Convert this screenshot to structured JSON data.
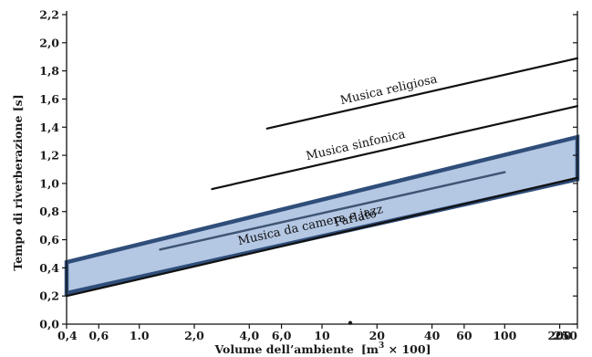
{
  "chart_data": {
    "type": "line",
    "x_scale": "log",
    "xlabel": "Volume dell’ambiente",
    "xlabel_unit_prefix": "[m",
    "xlabel_unit_exp": "3",
    "xlabel_unit_suffix": " × 100]",
    "ylabel": "Tempo di riverberazione [s]",
    "xlim": [
      0.4,
      250
    ],
    "ylim": [
      0.0,
      2.2
    ],
    "x_ticks": [
      0.4,
      0.6,
      1.0,
      2.0,
      4.0,
      6.0,
      10,
      20,
      40,
      60,
      100,
      200,
      250
    ],
    "x_tick_labels": [
      "0,4",
      "0,6",
      "1.0",
      "2,0",
      "4,0",
      "6,0",
      "10",
      "20",
      "40",
      "60",
      "100",
      "200",
      "250"
    ],
    "y_ticks": [
      0.0,
      0.2,
      0.4,
      0.6,
      0.8,
      1.0,
      1.2,
      1.4,
      1.6,
      1.8,
      2.0,
      2.2
    ],
    "y_tick_labels": [
      "0,0",
      "0,2",
      "0,4",
      "0,6",
      "0,8",
      "1,0",
      "1,2",
      "1,4",
      "1,6",
      "1,8",
      "2,0",
      "2,2"
    ],
    "stray_mark": "•",
    "series": [
      {
        "name": "Musica religiosa",
        "x": [
          5.0,
          250
        ],
        "y": [
          1.39,
          1.89
        ]
      },
      {
        "name": "Musica sinfonica",
        "x": [
          2.5,
          250
        ],
        "y": [
          0.96,
          1.55
        ]
      },
      {
        "name": "Musica da camera e jazz",
        "x": [
          1.3,
          100
        ],
        "y": [
          0.53,
          1.08
        ]
      },
      {
        "name": "Parlato",
        "x": [
          0.4,
          250
        ],
        "y": [
          0.2,
          1.04
        ]
      }
    ],
    "highlight_band": {
      "x": [
        0.4,
        250,
        250,
        0.4
      ],
      "y": [
        0.22,
        1.03,
        1.33,
        0.44
      ],
      "fill": "#b4c7e3",
      "stroke": "#2f4e7a"
    },
    "grid": false,
    "legend": "none"
  }
}
